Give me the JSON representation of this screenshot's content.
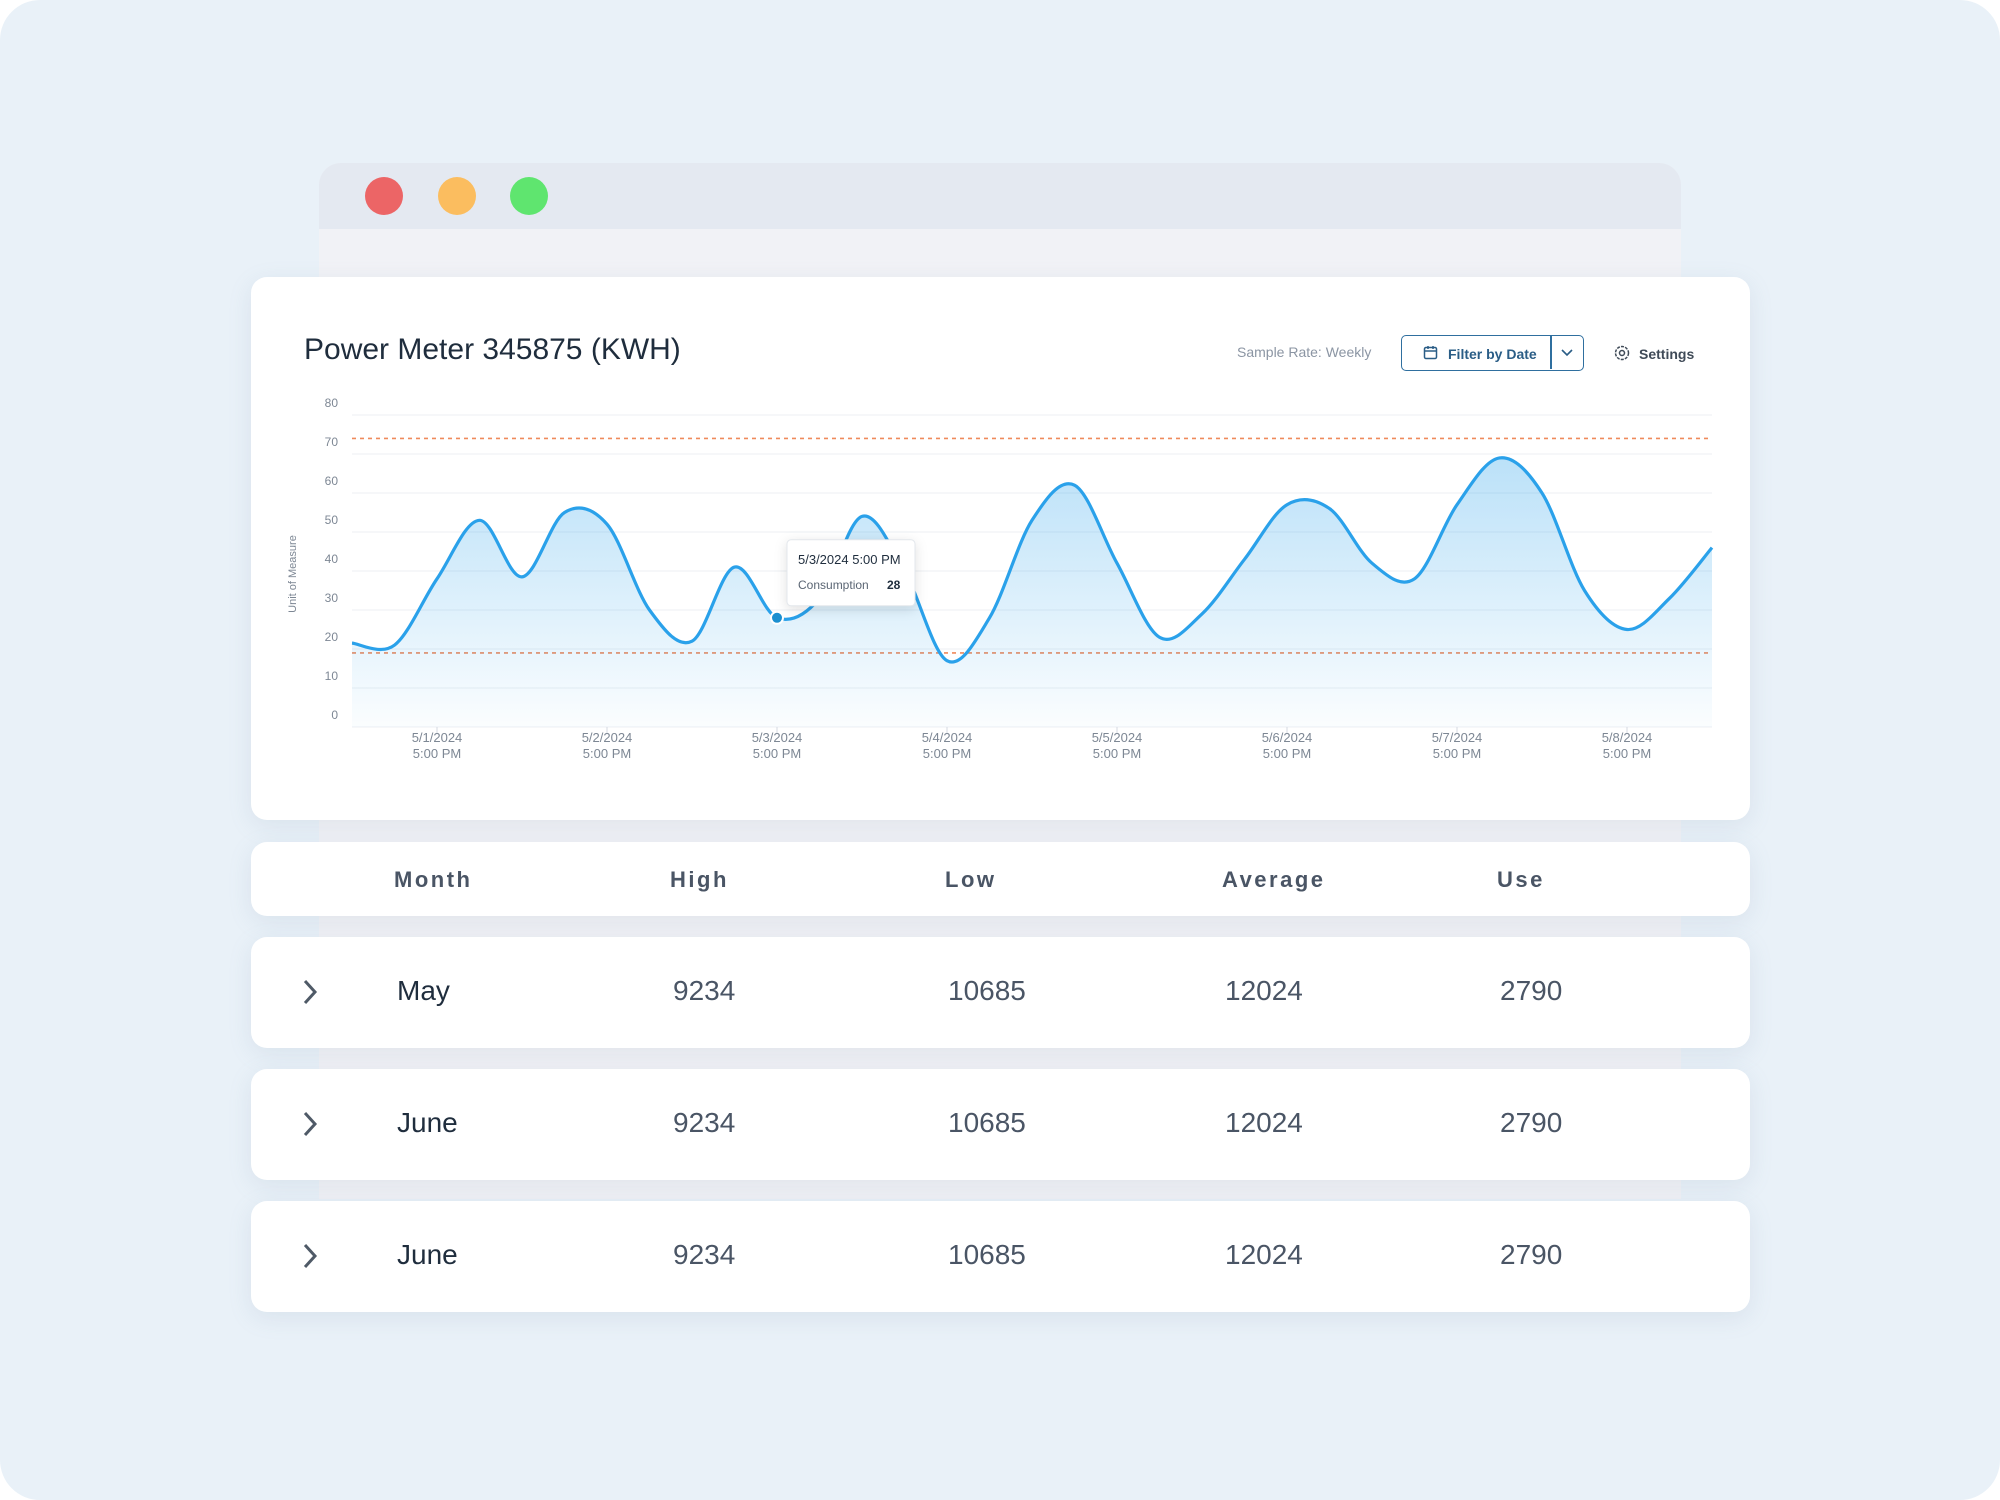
{
  "header": {
    "title": "Power Meter 345875 (KWH)",
    "sample_rate": "Sample Rate: Weekly",
    "filter_button": "Filter by Date",
    "settings_button": "Settings"
  },
  "chart_data": {
    "type": "line",
    "y_label": "Unit of Measure",
    "categories": [
      null,
      null,
      "5/1/2024 5:00 PM",
      null,
      null,
      null,
      "5/2/2024 5:00 PM",
      null,
      null,
      null,
      "5/3/2024 5:00 PM",
      null,
      null,
      null,
      "5/4/2024 5:00 PM",
      null,
      null,
      null,
      "5/5/2024 5:00 PM",
      null,
      null,
      null,
      "5/6/2024 5:00 PM",
      null,
      null,
      null,
      "5/7/2024 5:00 PM",
      null,
      null,
      null,
      "5/8/2024 5:00 PM",
      null,
      null
    ],
    "series": [
      {
        "name": "Consumption",
        "color": "#2aa1ea",
        "values": [
          21.5,
          21,
          38,
          53,
          38.5,
          55,
          52,
          30,
          22,
          41,
          28,
          33,
          54,
          40,
          17,
          28,
          53,
          62,
          42,
          23,
          29,
          43,
          57,
          56,
          42,
          38,
          57,
          69,
          60,
          35,
          25,
          33,
          46
        ]
      }
    ],
    "reference_lines": [
      {
        "value": 74,
        "color": "#ef8a5c"
      },
      {
        "value": 19,
        "color": "#ef8a5c"
      }
    ],
    "ylim": [
      0,
      80
    ],
    "yticks": [
      0,
      10,
      20,
      30,
      40,
      50,
      60,
      70,
      80
    ],
    "grid": true,
    "tooltip": {
      "title": "5/3/2024 5:00 PM",
      "label": "Consumption",
      "value": 28
    }
  },
  "table": {
    "columns": [
      "Month",
      "High",
      "Low",
      "Average",
      "Use"
    ],
    "rows": [
      [
        "May",
        9234,
        10685,
        12024,
        2790
      ],
      [
        "June",
        9234,
        10685,
        12024,
        2790
      ],
      [
        "June",
        9234,
        10685,
        12024,
        2790
      ]
    ]
  }
}
